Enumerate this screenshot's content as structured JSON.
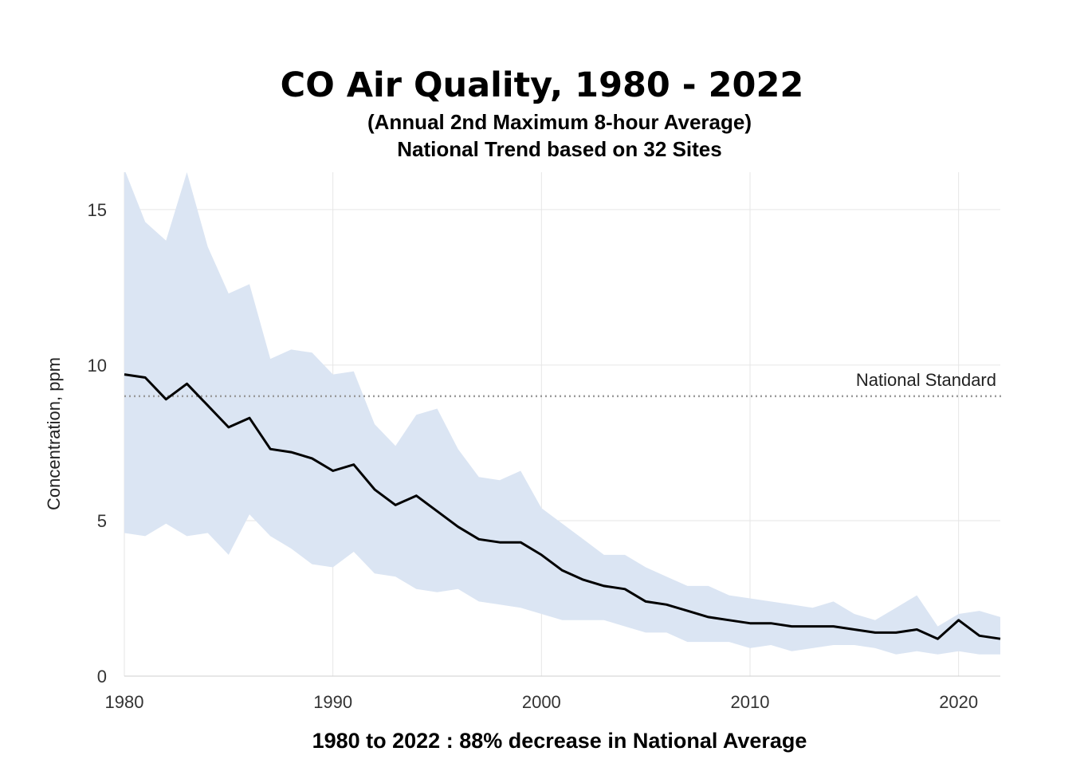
{
  "chart_data": {
    "type": "area",
    "title": "CO Air Quality, 1980 - 2022",
    "subtitle_lines": [
      "(Annual 2nd Maximum 8-hour Average)",
      "National Trend based on 32 Sites"
    ],
    "footer": "1980 to 2022 :  88% decrease in National Average",
    "ylabel": "Concentration, ppm",
    "xlim": [
      1980,
      2022
    ],
    "ylim": [
      0,
      16.2
    ],
    "xticks": [
      1980,
      1990,
      2000,
      2010,
      2020
    ],
    "yticks": [
      0,
      5,
      10,
      15
    ],
    "grid": true,
    "x": [
      1980,
      1981,
      1982,
      1983,
      1984,
      1985,
      1986,
      1987,
      1988,
      1989,
      1990,
      1991,
      1992,
      1993,
      1994,
      1995,
      1996,
      1997,
      1998,
      1999,
      2000,
      2001,
      2002,
      2003,
      2004,
      2005,
      2006,
      2007,
      2008,
      2009,
      2010,
      2011,
      2012,
      2013,
      2014,
      2015,
      2016,
      2017,
      2018,
      2019,
      2020,
      2021,
      2022
    ],
    "national_average": [
      9.7,
      9.6,
      8.9,
      9.4,
      8.7,
      8.0,
      8.3,
      7.3,
      7.2,
      7.0,
      6.6,
      6.8,
      6.0,
      5.5,
      5.8,
      5.3,
      4.8,
      4.4,
      4.3,
      4.3,
      3.9,
      3.4,
      3.1,
      2.9,
      2.8,
      2.4,
      2.3,
      2.1,
      1.9,
      1.8,
      1.7,
      1.7,
      1.6,
      1.6,
      1.6,
      1.5,
      1.4,
      1.4,
      1.5,
      1.2,
      1.8,
      1.3,
      1.2
    ],
    "band_upper": [
      16.3,
      14.6,
      14.0,
      16.2,
      13.8,
      12.3,
      12.6,
      10.2,
      10.5,
      10.4,
      9.7,
      9.8,
      8.1,
      7.4,
      8.4,
      8.6,
      7.3,
      6.4,
      6.3,
      6.6,
      5.4,
      4.9,
      4.4,
      3.9,
      3.9,
      3.5,
      3.2,
      2.9,
      2.9,
      2.6,
      2.5,
      2.4,
      2.3,
      2.2,
      2.4,
      2.0,
      1.8,
      2.2,
      2.6,
      1.6,
      2.0,
      2.1,
      1.9
    ],
    "band_lower": [
      4.6,
      4.5,
      4.9,
      4.5,
      4.6,
      3.9,
      5.2,
      4.5,
      4.1,
      3.6,
      3.5,
      4.0,
      3.3,
      3.2,
      2.8,
      2.7,
      2.8,
      2.4,
      2.3,
      2.2,
      2.0,
      1.8,
      1.8,
      1.8,
      1.6,
      1.4,
      1.4,
      1.1,
      1.1,
      1.1,
      0.9,
      1.0,
      0.8,
      0.9,
      1.0,
      1.0,
      0.9,
      0.7,
      0.8,
      0.7,
      0.8,
      0.7,
      0.7
    ],
    "reference_line": {
      "value": 9.0,
      "label": "National Standard"
    },
    "colors": {
      "band": "#dbe5f3",
      "line": "#000000",
      "grid": "#e6e6e6",
      "reference": "#9a9a9a"
    }
  }
}
